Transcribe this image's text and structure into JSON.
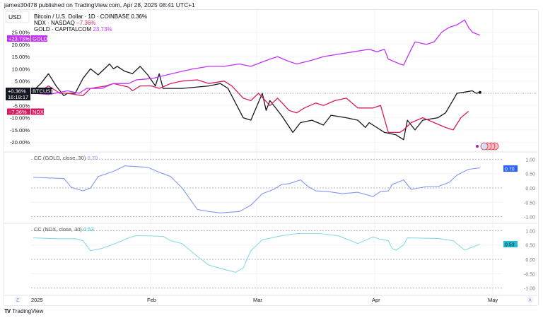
{
  "header": {
    "published": "james30478 published on TradingView.com, Apr 28, 2025 08:41 UTC+1"
  },
  "currency_button": "USD",
  "legend": {
    "main": {
      "name": "Bitcoin / U.S. Dollar · 1D · COINBASE",
      "value": "0.36%"
    },
    "ndx": {
      "name": "NDX · NASDAQ",
      "value": "−7.36%"
    },
    "gold": {
      "name": "GOLD · CAPITALCOM",
      "value": "23.73%"
    }
  },
  "colors": {
    "btc": "#131722",
    "ndx": "#d81b60",
    "gold": "#c233f5",
    "cc_gold": "#8098f8",
    "cc_gold_tag": "#2962ff",
    "cc_ndx": "#86dbe8",
    "cc_ndx_tag": "#22bfd4"
  },
  "tags": {
    "gold": {
      "value": "+23.73%",
      "symbol": "GOLD"
    },
    "btc": {
      "value": "+0.36%",
      "countdown": "16:18:17",
      "symbol": "BTCUSD"
    },
    "ndx": {
      "value": "−7.36%",
      "symbol": "NDX"
    }
  },
  "x_axis": {
    "labels": [
      "2025",
      "Feb",
      "Mar",
      "Apr",
      "May"
    ],
    "left_button": "Z",
    "right_button": "A"
  },
  "footer": {
    "brand": "TradingView"
  },
  "chart_data": [
    {
      "type": "line",
      "title": "",
      "ylabel": "",
      "y_unit": "%",
      "ylim": [
        -25,
        27
      ],
      "y_ticks": [
        "25.00%",
        "20.00%",
        "15.00%",
        "10.00%",
        "5.00%",
        "-5.00%",
        "-10.00%",
        "-15.00%",
        "-20.00%"
      ],
      "grid": true,
      "series": [
        {
          "name": "BTCUSD",
          "points": [
            [
              "2025-01-01",
              1
            ],
            [
              "2025-01-03",
              4
            ],
            [
              "2025-01-05",
              8
            ],
            [
              "2025-01-07",
              3
            ],
            [
              "2025-01-09",
              -1
            ],
            [
              "2025-01-10",
              0
            ],
            [
              "2025-01-12",
              0
            ],
            [
              "2025-01-14",
              6
            ],
            [
              "2025-01-16",
              10
            ],
            [
              "2025-01-18",
              7.5
            ],
            [
              "2025-01-21",
              12
            ],
            [
              "2025-01-22",
              10
            ],
            [
              "2025-01-23",
              11
            ],
            [
              "2025-01-25",
              9
            ],
            [
              "2025-01-27",
              8
            ],
            [
              "2025-01-29",
              11
            ],
            [
              "2025-01-31",
              7.5
            ],
            [
              "2025-02-02",
              3
            ],
            [
              "2025-02-03",
              8
            ],
            [
              "2025-02-04",
              2
            ],
            [
              "2025-02-09",
              2
            ],
            [
              "2025-02-16",
              3
            ],
            [
              "2025-02-19",
              4
            ],
            [
              "2025-02-21",
              2
            ],
            [
              "2025-02-25",
              -10
            ],
            [
              "2025-02-27",
              -11
            ],
            [
              "2025-03-02",
              0
            ],
            [
              "2025-03-03",
              -7
            ],
            [
              "2025-03-04",
              -3
            ],
            [
              "2025-03-07",
              -9
            ],
            [
              "2025-03-10",
              -16
            ],
            [
              "2025-03-12",
              -12
            ],
            [
              "2025-03-15",
              -11
            ],
            [
              "2025-03-18",
              -13
            ],
            [
              "2025-03-20",
              -9
            ],
            [
              "2025-03-24",
              -10
            ],
            [
              "2025-03-27",
              -11
            ],
            [
              "2025-03-29",
              -14
            ],
            [
              "2025-03-30",
              -12
            ],
            [
              "2025-04-03",
              -16
            ],
            [
              "2025-04-06",
              -17
            ],
            [
              "2025-04-08",
              -19
            ],
            [
              "2025-04-09",
              -11
            ],
            [
              "2025-04-11",
              -15
            ],
            [
              "2025-04-13",
              -11
            ],
            [
              "2025-04-17",
              -10
            ],
            [
              "2025-04-19",
              -8
            ],
            [
              "2025-04-22",
              0
            ],
            [
              "2025-04-24",
              0.5
            ],
            [
              "2025-04-26",
              1
            ],
            [
              "2025-04-27",
              0
            ],
            [
              "2025-04-28",
              0.36
            ]
          ]
        },
        {
          "name": "NDX",
          "points": [
            [
              "2025-01-01",
              0
            ],
            [
              "2025-01-03",
              1
            ],
            [
              "2025-01-05",
              3
            ],
            [
              "2025-01-08",
              0
            ],
            [
              "2025-01-10",
              0
            ],
            [
              "2025-01-14",
              -1
            ],
            [
              "2025-01-16",
              2
            ],
            [
              "2025-01-20",
              3
            ],
            [
              "2025-01-22",
              4
            ],
            [
              "2025-01-26",
              2.5
            ],
            [
              "2025-01-27",
              1
            ],
            [
              "2025-01-29",
              3
            ],
            [
              "2025-02-01",
              3
            ],
            [
              "2025-02-03",
              2
            ],
            [
              "2025-02-06",
              4
            ],
            [
              "2025-02-09",
              5
            ],
            [
              "2025-02-13",
              5.5
            ],
            [
              "2025-02-16",
              4
            ],
            [
              "2025-02-20",
              5
            ],
            [
              "2025-02-22",
              3
            ],
            [
              "2025-02-25",
              -2
            ],
            [
              "2025-02-27",
              -3
            ],
            [
              "2025-03-01",
              0
            ],
            [
              "2025-03-04",
              -5
            ],
            [
              "2025-03-06",
              -2
            ],
            [
              "2025-03-09",
              -7
            ],
            [
              "2025-03-11",
              -8
            ],
            [
              "2025-03-13",
              -6
            ],
            [
              "2025-03-16",
              -4
            ],
            [
              "2025-03-18",
              -5
            ],
            [
              "2025-03-21",
              -3
            ],
            [
              "2025-03-24",
              -2
            ],
            [
              "2025-03-27",
              -6
            ],
            [
              "2025-03-31",
              -6
            ],
            [
              "2025-04-02",
              -5
            ],
            [
              "2025-04-04",
              -16
            ],
            [
              "2025-04-07",
              -16
            ],
            [
              "2025-04-08",
              -15
            ],
            [
              "2025-04-10",
              -12
            ],
            [
              "2025-04-13",
              -10
            ],
            [
              "2025-04-16",
              -12
            ],
            [
              "2025-04-19",
              -14
            ],
            [
              "2025-04-21",
              -15
            ],
            [
              "2025-04-23",
              -10
            ],
            [
              "2025-04-25",
              -7.36
            ]
          ]
        },
        {
          "name": "GOLD",
          "points": [
            [
              "2025-01-01",
              0
            ],
            [
              "2025-01-05",
              -0.5
            ],
            [
              "2025-01-10",
              1
            ],
            [
              "2025-01-13",
              0
            ],
            [
              "2025-01-15",
              2
            ],
            [
              "2025-01-19",
              2
            ],
            [
              "2025-01-22",
              4
            ],
            [
              "2025-01-26",
              4
            ],
            [
              "2025-01-28",
              5.5
            ],
            [
              "2025-02-01",
              6
            ],
            [
              "2025-02-05",
              7.5
            ],
            [
              "2025-02-09",
              9
            ],
            [
              "2025-02-12",
              10
            ],
            [
              "2025-02-16",
              11
            ],
            [
              "2025-02-20",
              11
            ],
            [
              "2025-02-24",
              12
            ],
            [
              "2025-02-27",
              11
            ],
            [
              "2025-03-04",
              14
            ],
            [
              "2025-03-06",
              15
            ],
            [
              "2025-03-09",
              13
            ],
            [
              "2025-03-11",
              12
            ],
            [
              "2025-03-15",
              13.5
            ],
            [
              "2025-03-18",
              15
            ],
            [
              "2025-03-22",
              16
            ],
            [
              "2025-03-26",
              17
            ],
            [
              "2025-03-30",
              18
            ],
            [
              "2025-04-01",
              17
            ],
            [
              "2025-04-03",
              18
            ],
            [
              "2025-04-04",
              14
            ],
            [
              "2025-04-07",
              12
            ],
            [
              "2025-04-08",
              11.5
            ],
            [
              "2025-04-10",
              18
            ],
            [
              "2025-04-11",
              21
            ],
            [
              "2025-04-14",
              20
            ],
            [
              "2025-04-16",
              21
            ],
            [
              "2025-04-18",
              25
            ],
            [
              "2025-04-20",
              27
            ],
            [
              "2025-04-22",
              28
            ],
            [
              "2025-04-24",
              30
            ],
            [
              "2025-04-25",
              27
            ],
            [
              "2025-04-26",
              25
            ],
            [
              "2025-04-28",
              23.73
            ]
          ]
        }
      ]
    },
    {
      "type": "line",
      "title": "CC (GOLD, close, 30)",
      "last_value": "0.70",
      "ylim": [
        -1,
        1
      ],
      "y_ticks": [
        "1.00",
        "0.50",
        "0.00",
        "-0.50",
        "-1.00"
      ],
      "series": [
        {
          "points": [
            [
              "2025-01-01",
              0.37
            ],
            [
              "2025-01-09",
              0.33
            ],
            [
              "2025-01-11",
              0.02
            ],
            [
              "2025-01-14",
              -0.1
            ],
            [
              "2025-01-16",
              0
            ],
            [
              "2025-01-18",
              0.4
            ],
            [
              "2025-01-22",
              0.58
            ],
            [
              "2025-01-25",
              0.77
            ],
            [
              "2025-01-31",
              0.72
            ],
            [
              "2025-02-03",
              0.55
            ],
            [
              "2025-02-06",
              0.4
            ],
            [
              "2025-02-09",
              0
            ],
            [
              "2025-02-13",
              -0.75
            ],
            [
              "2025-02-16",
              -0.82
            ],
            [
              "2025-02-19",
              -0.87
            ],
            [
              "2025-02-24",
              -0.82
            ],
            [
              "2025-02-27",
              -0.6
            ],
            [
              "2025-03-02",
              -0.2
            ],
            [
              "2025-03-05",
              -0.05
            ],
            [
              "2025-03-07",
              0.12
            ],
            [
              "2025-03-09",
              0.15
            ],
            [
              "2025-03-12",
              0.28
            ],
            [
              "2025-03-14",
              0.05
            ],
            [
              "2025-03-16",
              -0.1
            ],
            [
              "2025-03-19",
              -0.12
            ],
            [
              "2025-03-23",
              -0.2
            ],
            [
              "2025-03-27",
              -0.15
            ],
            [
              "2025-03-31",
              -0.3
            ],
            [
              "2025-04-02",
              -0.12
            ],
            [
              "2025-04-04",
              -0.1
            ],
            [
              "2025-04-05",
              0.12
            ],
            [
              "2025-04-08",
              0.28
            ],
            [
              "2025-04-10",
              -0.05
            ],
            [
              "2025-04-14",
              0.05
            ],
            [
              "2025-04-17",
              0.05
            ],
            [
              "2025-04-20",
              0.2
            ],
            [
              "2025-04-22",
              0.45
            ],
            [
              "2025-04-25",
              0.65
            ],
            [
              "2025-04-28",
              0.7
            ]
          ]
        }
      ]
    },
    {
      "type": "line",
      "title": "CC (NDX, close, 30)",
      "last_value": "0.53",
      "ylim": [
        -1,
        1
      ],
      "y_ticks": [
        "1.00",
        "0.50",
        "0.00",
        "-0.50",
        "-1.00"
      ],
      "series": [
        {
          "points": [
            [
              "2025-01-01",
              0.75
            ],
            [
              "2025-01-07",
              0.72
            ],
            [
              "2025-01-12",
              0.72
            ],
            [
              "2025-01-14",
              0.65
            ],
            [
              "2025-01-16",
              0.3
            ],
            [
              "2025-01-19",
              0.38
            ],
            [
              "2025-01-23",
              0.58
            ],
            [
              "2025-01-26",
              0.75
            ],
            [
              "2025-01-28",
              0.83
            ],
            [
              "2025-02-04",
              0.8
            ],
            [
              "2025-02-06",
              0.65
            ],
            [
              "2025-02-09",
              0.55
            ],
            [
              "2025-02-13",
              0.1
            ],
            [
              "2025-02-16",
              -0.2
            ],
            [
              "2025-02-20",
              -0.35
            ],
            [
              "2025-02-23",
              -0.45
            ],
            [
              "2025-02-25",
              -0.3
            ],
            [
              "2025-02-27",
              0.3
            ],
            [
              "2025-03-02",
              0.68
            ],
            [
              "2025-03-07",
              0.82
            ],
            [
              "2025-03-11",
              0.9
            ],
            [
              "2025-03-17",
              0.9
            ],
            [
              "2025-03-22",
              0.82
            ],
            [
              "2025-03-27",
              0.55
            ],
            [
              "2025-03-31",
              0.78
            ],
            [
              "2025-04-02",
              0.7
            ],
            [
              "2025-04-04",
              0.65
            ],
            [
              "2025-04-05",
              0.38
            ],
            [
              "2025-04-06",
              0.32
            ],
            [
              "2025-04-08",
              0.5
            ],
            [
              "2025-04-09",
              0.75
            ],
            [
              "2025-04-17",
              0.73
            ],
            [
              "2025-04-21",
              0.65
            ],
            [
              "2025-04-24",
              0.32
            ],
            [
              "2025-04-28",
              0.53
            ]
          ]
        }
      ]
    }
  ]
}
